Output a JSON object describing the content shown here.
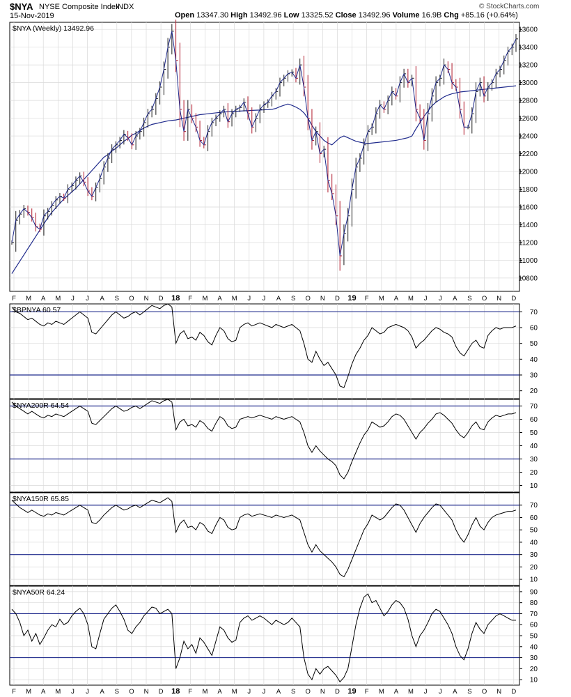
{
  "header": {
    "symbol": "$NYA",
    "name": "NYSE Composite Index",
    "exchange": "INDX",
    "date": "15-Nov-2019",
    "open_label": "Open",
    "open": "13347.30",
    "high_label": "High",
    "high": "13492.96",
    "low_label": "Low",
    "low": "13325.52",
    "close_label": "Close",
    "close": "13492.96",
    "volume_label": "Volume",
    "volume": "16.9B",
    "chg_label": "Chg",
    "chg": "+85.16 (+0.64%)",
    "brand": "© StockCharts.com"
  },
  "colors": {
    "price": "#1a1a1a",
    "down_bar": "#b0182a",
    "ma": "#1f2a8c",
    "indicator": "#000000",
    "ref_line": "#1f2a8c",
    "grid": "#d9d9d9"
  },
  "chart_data": [
    {
      "type": "line",
      "legend": "$NYA (Weekly) 13492.96",
      "ylim": [
        10650,
        13680
      ],
      "yticks": [
        10800,
        11000,
        11200,
        11400,
        11600,
        11800,
        12000,
        12200,
        12400,
        12600,
        12800,
        13000,
        13200,
        13400,
        13600
      ],
      "series": [
        {
          "role": "price",
          "values": [
            11200,
            11450,
            11520,
            11580,
            11540,
            11480,
            11380,
            11350,
            11500,
            11550,
            11620,
            11680,
            11720,
            11700,
            11800,
            11840,
            11900,
            11950,
            11880,
            11780,
            11720,
            11820,
            11920,
            12050,
            12150,
            12250,
            12300,
            12350,
            12420,
            12380,
            12300,
            12400,
            12450,
            12550,
            12650,
            12700,
            12820,
            12950,
            13150,
            13400,
            13580,
            13250,
            12700,
            12450,
            12700,
            12600,
            12500,
            12350,
            12300,
            12450,
            12550,
            12600,
            12650,
            12700,
            12560,
            12650,
            12700,
            12720,
            12780,
            12650,
            12500,
            12600,
            12700,
            12750,
            12780,
            12850,
            12900,
            13000,
            13050,
            13100,
            13120,
            13050,
            13200,
            12950,
            12600,
            12350,
            12450,
            12200,
            12250,
            11900,
            11750,
            11500,
            11050,
            11300,
            11500,
            11800,
            12050,
            12150,
            12300,
            12450,
            12500,
            12650,
            12750,
            12700,
            12800,
            12900,
            12850,
            13000,
            13100,
            13000,
            13050,
            12700,
            12600,
            12350,
            12650,
            12850,
            13000,
            13050,
            13200,
            13150,
            13000,
            12950,
            12700,
            12500,
            12500,
            12650,
            12900,
            13000,
            12850,
            12950,
            13000,
            13100,
            13150,
            13250,
            13350,
            13400,
            13493
          ]
        },
        {
          "role": "moving-average",
          "values": [
            10850,
            10920,
            10990,
            11060,
            11130,
            11200,
            11270,
            11340,
            11410,
            11480,
            11540,
            11590,
            11640,
            11690,
            11730,
            11770,
            11810,
            11860,
            11910,
            11960,
            12010,
            12060,
            12110,
            12160,
            12190,
            12230,
            12260,
            12300,
            12340,
            12370,
            12410,
            12430,
            12460,
            12490,
            12510,
            12530,
            12540,
            12550,
            12560,
            12570,
            12575,
            12580,
            12590,
            12600,
            12610,
            12620,
            12630,
            12640,
            12645,
            12650,
            12655,
            12660,
            12665,
            12670,
            12672,
            12675,
            12677,
            12680,
            12683,
            12685,
            12688,
            12690,
            12692,
            12695,
            12697,
            12700,
            12710,
            12730,
            12745,
            12760,
            12745,
            12725,
            12700,
            12660,
            12600,
            12520,
            12450,
            12400,
            12350,
            12320,
            12300,
            12340,
            12380,
            12400,
            12380,
            12360,
            12340,
            12330,
            12320,
            12315,
            12320,
            12325,
            12330,
            12335,
            12340,
            12345,
            12350,
            12360,
            12370,
            12380,
            12400,
            12480,
            12550,
            12620,
            12680,
            12740,
            12780,
            12810,
            12840,
            12860,
            12875,
            12885,
            12895,
            12900,
            12905,
            12910,
            12915,
            12920,
            12925,
            12930,
            12935,
            12940,
            12945,
            12950,
            12955,
            12960,
            12965
          ]
        }
      ]
    },
    {
      "type": "line",
      "legend": "$BPNYA 60.57",
      "ylim": [
        15,
        75
      ],
      "yticks": [
        20,
        30,
        40,
        50,
        60,
        70
      ],
      "ref_lines": [
        30,
        70
      ],
      "values": [
        73,
        70,
        69,
        67,
        65,
        66,
        64,
        62,
        61,
        63,
        62,
        64,
        63,
        62,
        64,
        66,
        68,
        70,
        68,
        66,
        57,
        56,
        59,
        62,
        65,
        68,
        70,
        68,
        66,
        67,
        69,
        70,
        68,
        70,
        72,
        74,
        73,
        72,
        74,
        75,
        73,
        50,
        56,
        58,
        53,
        54,
        52,
        57,
        55,
        51,
        49,
        55,
        60,
        58,
        53,
        51,
        52,
        60,
        62,
        63,
        61,
        62,
        63,
        62,
        61,
        60,
        62,
        61,
        60,
        61,
        62,
        60,
        58,
        50,
        40,
        38,
        45,
        40,
        36,
        38,
        34,
        30,
        23,
        22,
        29,
        37,
        43,
        47,
        52,
        55,
        60,
        58,
        56,
        57,
        60,
        61,
        62,
        61,
        60,
        58,
        54,
        47,
        50,
        52,
        55,
        58,
        60,
        59,
        57,
        56,
        54,
        48,
        44,
        42,
        46,
        50,
        52,
        48,
        47,
        55,
        58,
        60,
        59,
        60,
        60,
        60,
        61
      ]
    },
    {
      "type": "line",
      "legend": "$NYA200R 64.54",
      "ylim": [
        5,
        75
      ],
      "yticks": [
        10,
        20,
        30,
        40,
        50,
        60,
        70
      ],
      "ref_lines": [
        30,
        70
      ],
      "values": [
        73,
        70,
        68,
        66,
        64,
        66,
        64,
        62,
        61,
        63,
        62,
        64,
        63,
        62,
        64,
        66,
        68,
        70,
        68,
        66,
        57,
        56,
        59,
        62,
        65,
        68,
        70,
        68,
        66,
        67,
        69,
        70,
        68,
        70,
        72,
        74,
        73,
        72,
        74,
        75,
        73,
        52,
        58,
        60,
        55,
        56,
        54,
        59,
        57,
        53,
        51,
        57,
        62,
        60,
        55,
        53,
        54,
        60,
        61,
        62,
        61,
        62,
        63,
        62,
        61,
        60,
        62,
        61,
        60,
        61,
        62,
        60,
        58,
        50,
        40,
        35,
        40,
        36,
        33,
        30,
        28,
        25,
        18,
        15,
        20,
        28,
        35,
        42,
        48,
        52,
        58,
        56,
        54,
        55,
        58,
        62,
        64,
        63,
        60,
        55,
        50,
        45,
        50,
        53,
        57,
        60,
        64,
        65,
        63,
        60,
        57,
        52,
        48,
        46,
        50,
        55,
        58,
        53,
        52,
        58,
        61,
        63,
        62,
        63,
        64,
        64,
        65
      ]
    },
    {
      "type": "line",
      "legend": "$NYA150R 65.85",
      "ylim": [
        5,
        80
      ],
      "yticks": [
        10,
        20,
        30,
        40,
        50,
        60,
        70
      ],
      "ref_lines": [
        30,
        70
      ],
      "values": [
        74,
        71,
        68,
        66,
        64,
        66,
        64,
        62,
        61,
        63,
        62,
        64,
        63,
        62,
        64,
        66,
        68,
        70,
        68,
        66,
        56,
        55,
        58,
        62,
        65,
        68,
        70,
        68,
        66,
        67,
        69,
        70,
        68,
        70,
        72,
        74,
        73,
        72,
        74,
        76,
        73,
        48,
        55,
        58,
        52,
        53,
        50,
        56,
        54,
        49,
        47,
        54,
        60,
        58,
        52,
        50,
        51,
        60,
        62,
        63,
        61,
        62,
        63,
        62,
        61,
        60,
        62,
        61,
        60,
        61,
        62,
        60,
        58,
        48,
        38,
        32,
        38,
        33,
        30,
        27,
        24,
        20,
        14,
        12,
        18,
        26,
        34,
        42,
        50,
        55,
        62,
        60,
        58,
        60,
        64,
        68,
        71,
        70,
        66,
        60,
        54,
        48,
        55,
        60,
        64,
        68,
        71,
        70,
        66,
        62,
        58,
        50,
        44,
        40,
        46,
        54,
        60,
        53,
        50,
        56,
        60,
        62,
        63,
        64,
        65,
        65,
        66
      ]
    },
    {
      "type": "line",
      "legend": "$NYA50R 64.24",
      "ylim": [
        5,
        95
      ],
      "yticks": [
        10,
        20,
        30,
        40,
        50,
        60,
        70,
        80,
        90
      ],
      "ref_lines": [
        30,
        70
      ],
      "values": [
        74,
        70,
        62,
        50,
        55,
        45,
        52,
        42,
        48,
        55,
        60,
        58,
        65,
        60,
        62,
        68,
        72,
        75,
        70,
        60,
        40,
        38,
        52,
        65,
        70,
        75,
        78,
        72,
        65,
        55,
        52,
        58,
        62,
        68,
        72,
        76,
        75,
        70,
        72,
        74,
        70,
        20,
        30,
        45,
        38,
        42,
        34,
        48,
        44,
        38,
        32,
        45,
        58,
        55,
        48,
        44,
        46,
        62,
        66,
        68,
        64,
        66,
        68,
        66,
        63,
        60,
        64,
        62,
        60,
        62,
        66,
        62,
        58,
        30,
        15,
        10,
        20,
        15,
        20,
        22,
        18,
        14,
        8,
        12,
        20,
        40,
        60,
        75,
        85,
        88,
        80,
        82,
        75,
        68,
        72,
        78,
        82,
        80,
        75,
        65,
        50,
        40,
        50,
        55,
        62,
        70,
        74,
        72,
        66,
        60,
        52,
        40,
        32,
        28,
        38,
        52,
        62,
        56,
        52,
        60,
        64,
        68,
        70,
        68,
        66,
        64,
        64
      ]
    }
  ],
  "x_axis_top": {
    "labels": [
      "F",
      "M",
      "A",
      "M",
      "J",
      "J",
      "A",
      "S",
      "O",
      "N",
      "D",
      "18",
      "F",
      "M",
      "A",
      "M",
      "J",
      "J",
      "A",
      "S",
      "O",
      "N",
      "D",
      "19",
      "F",
      "M",
      "A",
      "M",
      "J",
      "J",
      "A",
      "S",
      "O",
      "N",
      "D"
    ],
    "bold": [
      "18",
      "19"
    ]
  },
  "x_axis_bottom": {
    "labels": [
      "F",
      "M",
      "A",
      "M",
      "J",
      "J",
      "A",
      "S",
      "O",
      "N",
      "D",
      "18",
      "F",
      "M",
      "A",
      "M",
      "J",
      "J",
      "A",
      "S",
      "O",
      "N",
      "D",
      "19",
      "F",
      "M",
      "A",
      "M",
      "J",
      "J",
      "A",
      "S",
      "O",
      "N",
      "D"
    ],
    "bold": [
      "18",
      "19"
    ]
  }
}
